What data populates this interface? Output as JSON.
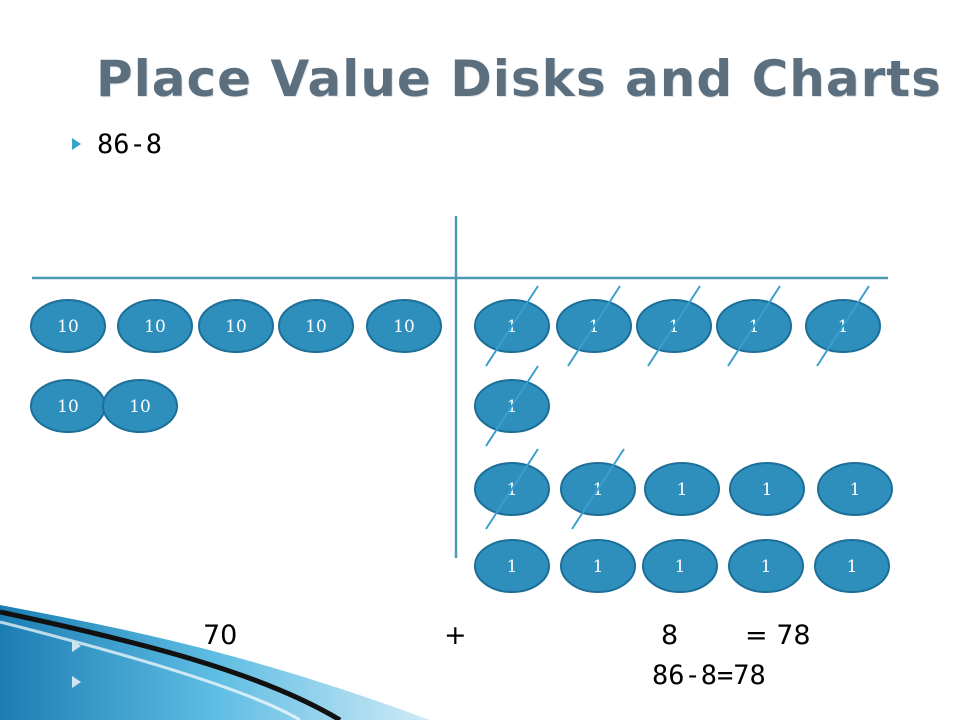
{
  "title": "Place Value Disks and Charts",
  "bullet": "86-8",
  "tens_label": "10",
  "ones_label": "1",
  "crossed_ones_label": "1",
  "equation": {
    "left": "70",
    "plus": "+",
    "middle": "8",
    "right": "= 78"
  },
  "result": "86-8=78",
  "colors": {
    "disk_fill": "#2e8fbd",
    "disk_border": "#1d6f98",
    "chart_lines": "#4a9ab3",
    "slash": "#3a9fd0",
    "title": "#5b6f7f",
    "bullet_arrow": "#3aa1c8"
  },
  "counts": {
    "tens_disks": 7,
    "ones_disks": 16,
    "crossed_out_ones": 8
  }
}
